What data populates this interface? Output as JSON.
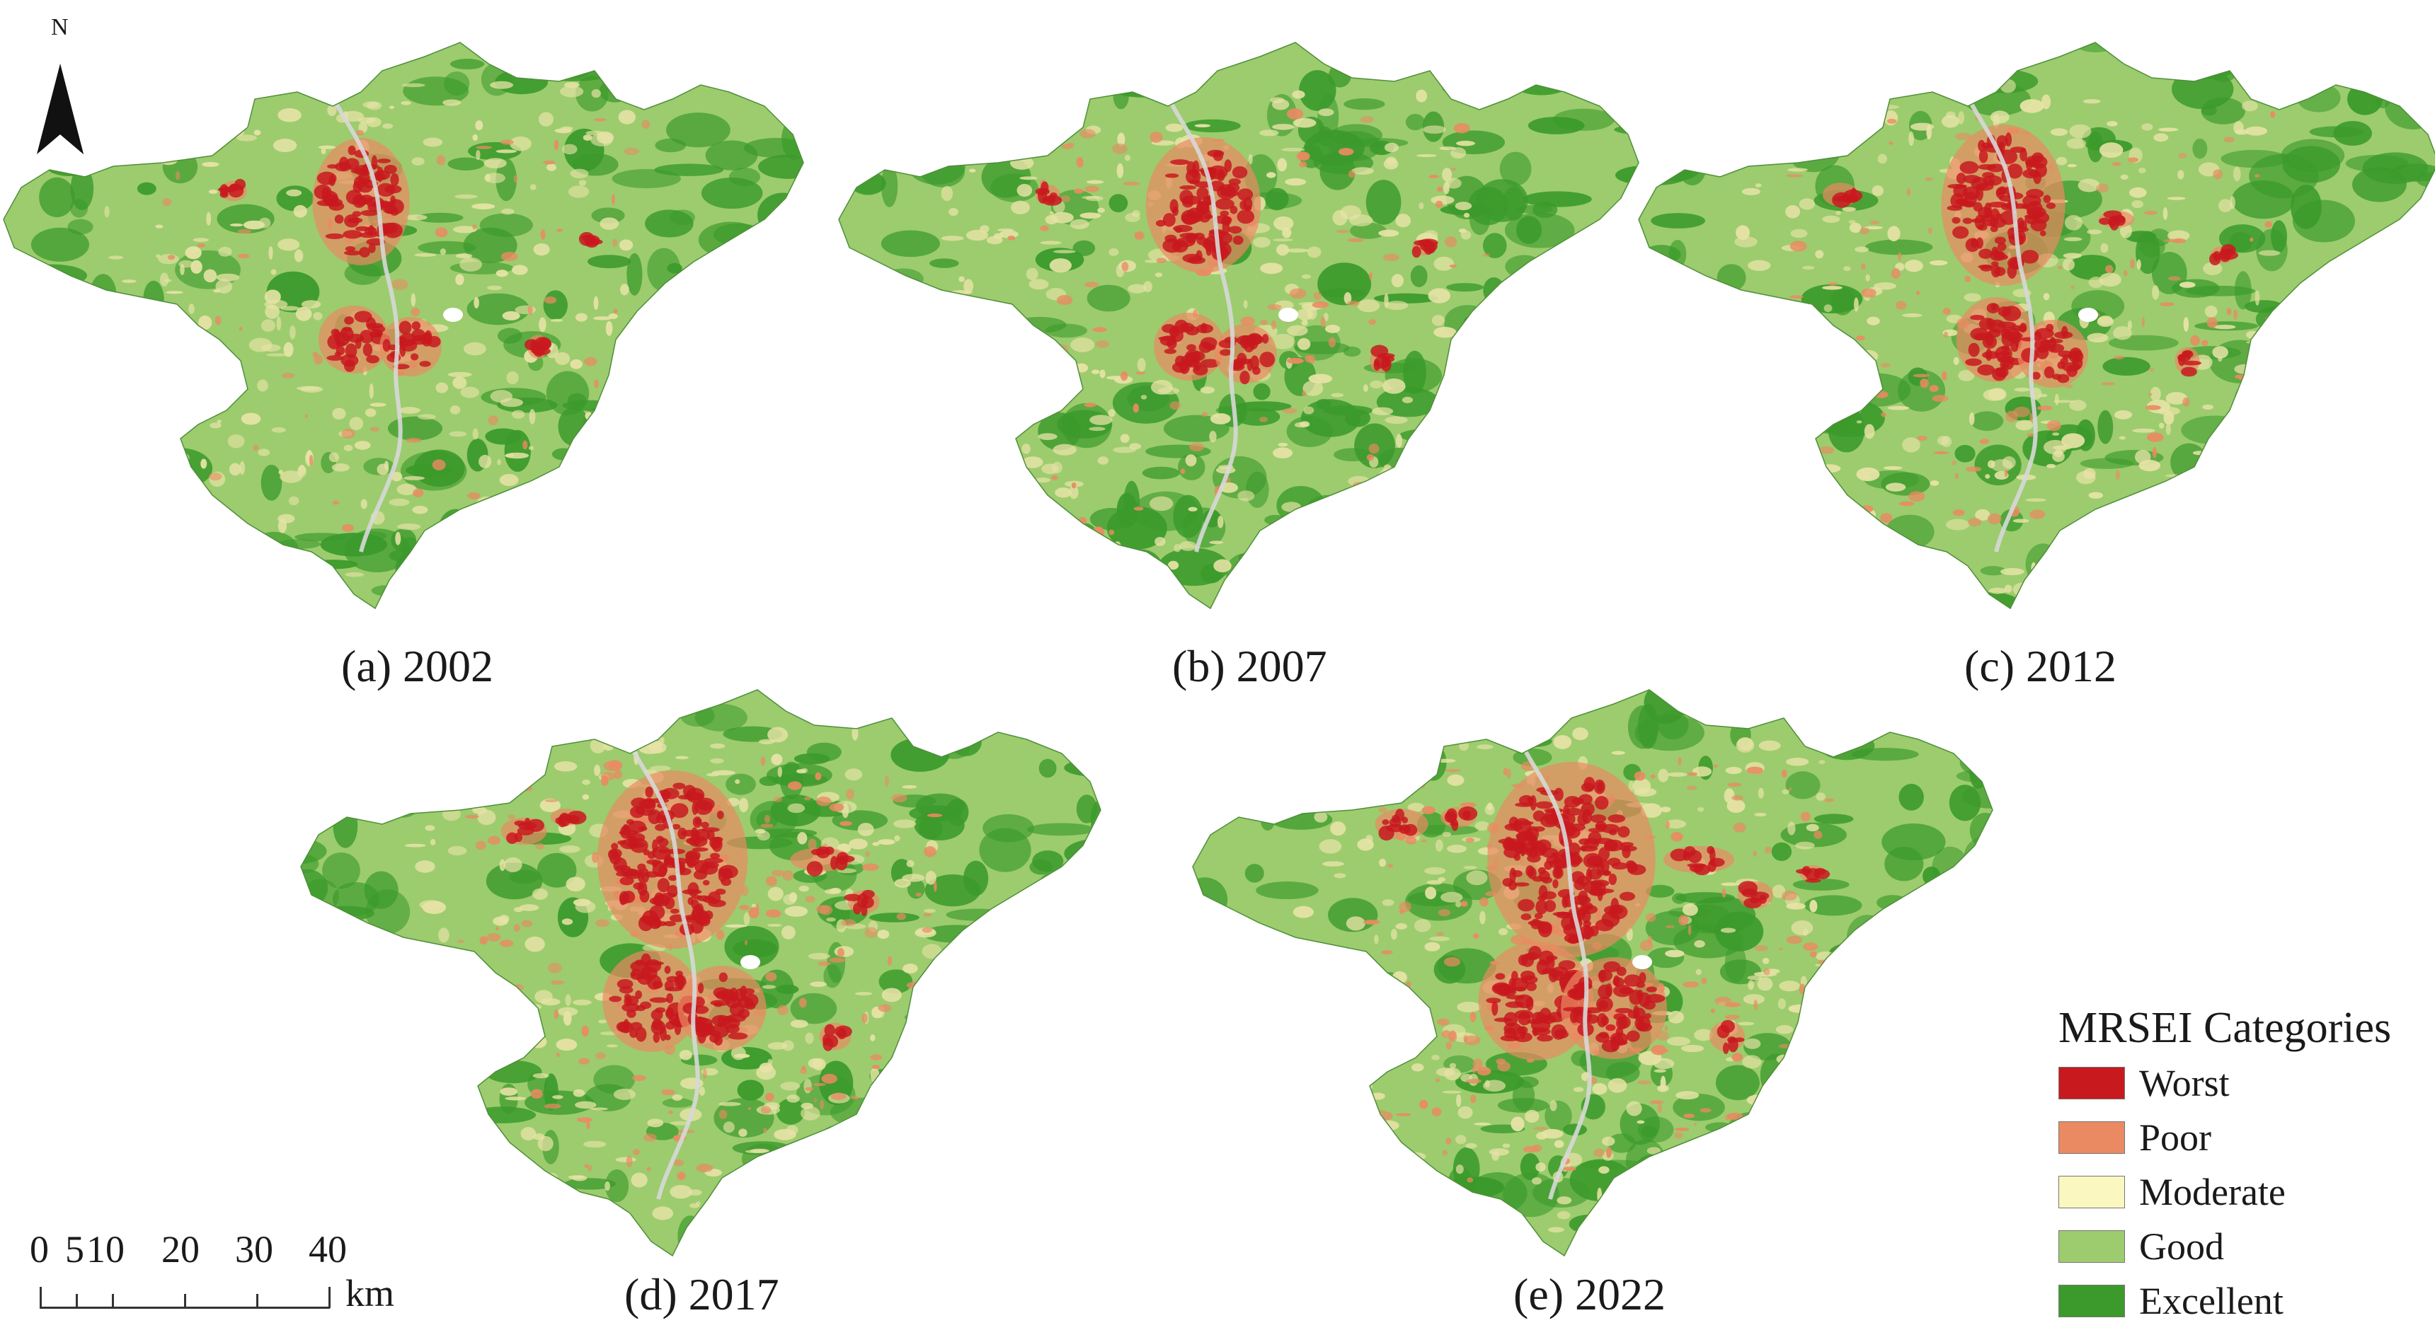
{
  "north_arrow": {
    "label": "N",
    "icon": "north-arrow-icon"
  },
  "maps": [
    {
      "id": "a",
      "caption": "(a) 2002"
    },
    {
      "id": "b",
      "caption": "(b) 2007"
    },
    {
      "id": "c",
      "caption": "(c) 2012"
    },
    {
      "id": "d",
      "caption": "(d) 2017"
    },
    {
      "id": "e",
      "caption": "(e) 2022"
    }
  ],
  "scale_bar": {
    "ticks": [
      "0",
      "5",
      "10",
      "20",
      "30",
      "40"
    ],
    "unit": "km"
  },
  "legend": {
    "title": "MRSEI Categories",
    "items": [
      {
        "label": "Worst",
        "color": "#c8191e"
      },
      {
        "label": "Poor",
        "color": "#ea8a62"
      },
      {
        "label": "Moderate",
        "color": "#fbf7c0"
      },
      {
        "label": "Good",
        "color": "#9ccc6e"
      },
      {
        "label": "Excellent",
        "color": "#3b9a2b"
      }
    ]
  },
  "colors": {
    "excellent": "#3b9a2b",
    "good": "#9ccc6e",
    "moderate": "#e7e3a6",
    "poor": "#ea8a62",
    "worst": "#c8191e",
    "river": "#d8d8d8"
  }
}
